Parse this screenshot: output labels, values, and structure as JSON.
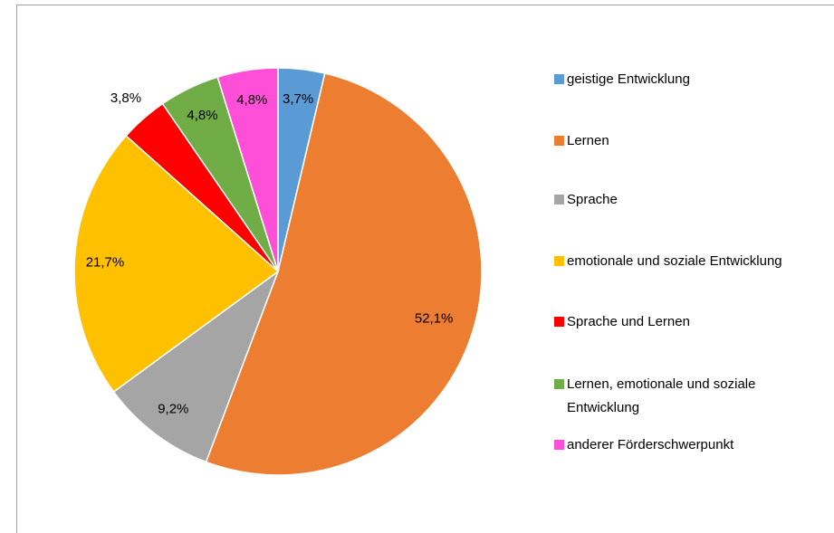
{
  "chart_data": {
    "type": "pie",
    "categories": [
      "geistige Entwicklung",
      "Lernen",
      "Sprache",
      "emotionale und soziale Entwicklung",
      "Sprache und Lernen",
      "Lernen, emotionale und soziale Entwicklung",
      "anderer Förderschwerpunkt"
    ],
    "values": [
      3.7,
      52.1,
      9.2,
      21.7,
      3.8,
      4.8,
      4.8
    ],
    "value_labels": [
      "3,7%",
      "52,1%",
      "9,2%",
      "21,7%",
      "3,8%",
      "4,8%",
      "4,8%"
    ],
    "colors": [
      "#5b9bd5",
      "#ed7d31",
      "#a5a5a5",
      "#ffc000",
      "#ff0000",
      "#70ad47",
      "#ff4fd8"
    ],
    "legend": "right"
  }
}
